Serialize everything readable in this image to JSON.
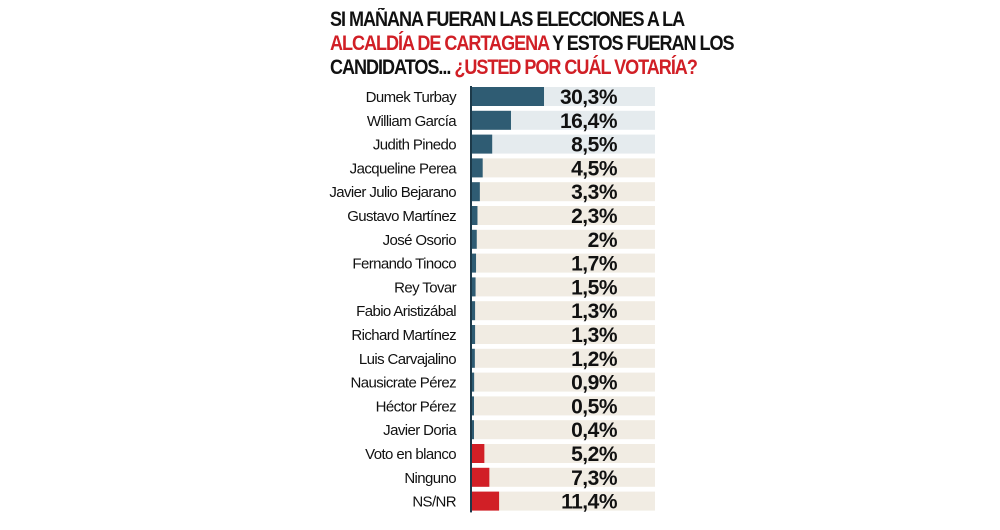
{
  "chart_data": {
    "type": "bar",
    "orientation": "horizontal",
    "title_parts": [
      {
        "text": "SI MAÑANA FUERAN LAS ELECCIONES A LA",
        "color": "#111111"
      },
      {
        "text": "ALCALDÍA DE CARTAGENA",
        "color": "#d11f26"
      },
      {
        "text": " Y ESTOS FUERAN LOS",
        "color": "#111111"
      },
      {
        "text": "CANDIDATOS...",
        "color": "#111111"
      },
      {
        "text": " ¿USTED POR CUÁL VOTARÍA?",
        "color": "#d11f26"
      }
    ],
    "categories": [
      "Dumek Turbay",
      "William García",
      "Judith Pinedo",
      "Jacqueline Perea",
      "Javier Julio Bejarano",
      "Gustavo Martínez",
      "José Osorio",
      "Fernando Tinoco",
      "Rey Tovar",
      "Fabio Aristizábal",
      "Richard Martínez",
      "Luis Carvajalino",
      "Nausicrate Pérez",
      "Héctor Pérez",
      "Javier Doria",
      "Voto en blanco",
      "Ninguno",
      "NS/NR"
    ],
    "values": [
      30.3,
      16.4,
      8.5,
      4.5,
      3.3,
      2.3,
      2,
      1.7,
      1.5,
      1.3,
      1.3,
      1.2,
      0.9,
      0.5,
      0.4,
      5.2,
      7.3,
      11.4
    ],
    "value_labels": [
      "30,3%",
      "16,4%",
      "8,5%",
      "4,5%",
      "3,3%",
      "2,3%",
      "2%",
      "1,7%",
      "1,5%",
      "1,3%",
      "1,3%",
      "1,2%",
      "0,9%",
      "0,5%",
      "0,4%",
      "5,2%",
      "7,3%",
      "11,4%"
    ],
    "bar_colors": [
      "blue",
      "blue",
      "blue",
      "blue",
      "blue",
      "blue",
      "blue",
      "blue",
      "blue",
      "blue",
      "blue",
      "blue",
      "blue",
      "blue",
      "blue",
      "red",
      "red",
      "red"
    ],
    "track_colors": [
      "light",
      "light",
      "light",
      "beige",
      "beige",
      "beige",
      "beige",
      "beige",
      "beige",
      "beige",
      "beige",
      "beige",
      "beige",
      "beige",
      "beige",
      "beige",
      "beige",
      "beige"
    ],
    "colors": {
      "blue": "#2f5c73",
      "red": "#d11f26",
      "light": "#e5ebee",
      "beige": "#f1ece3",
      "axis": "#1d3a4a"
    },
    "xlim": [
      0,
      77
    ]
  }
}
